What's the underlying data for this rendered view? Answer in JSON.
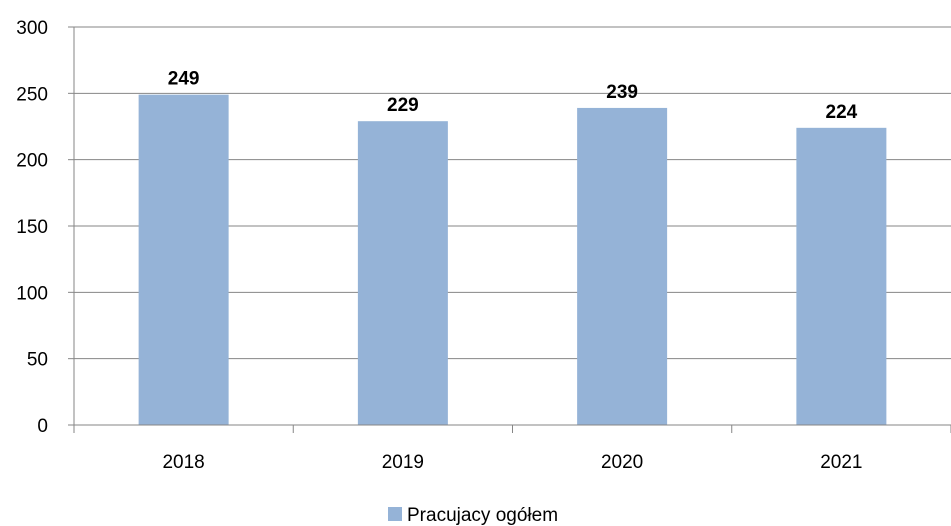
{
  "chart_data": {
    "type": "bar",
    "categories": [
      "2018",
      "2019",
      "2020",
      "2021"
    ],
    "series": [
      {
        "name": "Pracujacy ogółem",
        "values": [
          249,
          229,
          239,
          224
        ],
        "color": "#95b3d7"
      }
    ],
    "ylim": [
      0,
      300
    ],
    "yticks": [
      "0",
      "50",
      "100",
      "150",
      "200",
      "250",
      "300"
    ],
    "data_labels": [
      "249",
      "229",
      "239",
      "224"
    ],
    "grid": true,
    "gridline_color": "#868686",
    "legend_position": "bottom"
  }
}
